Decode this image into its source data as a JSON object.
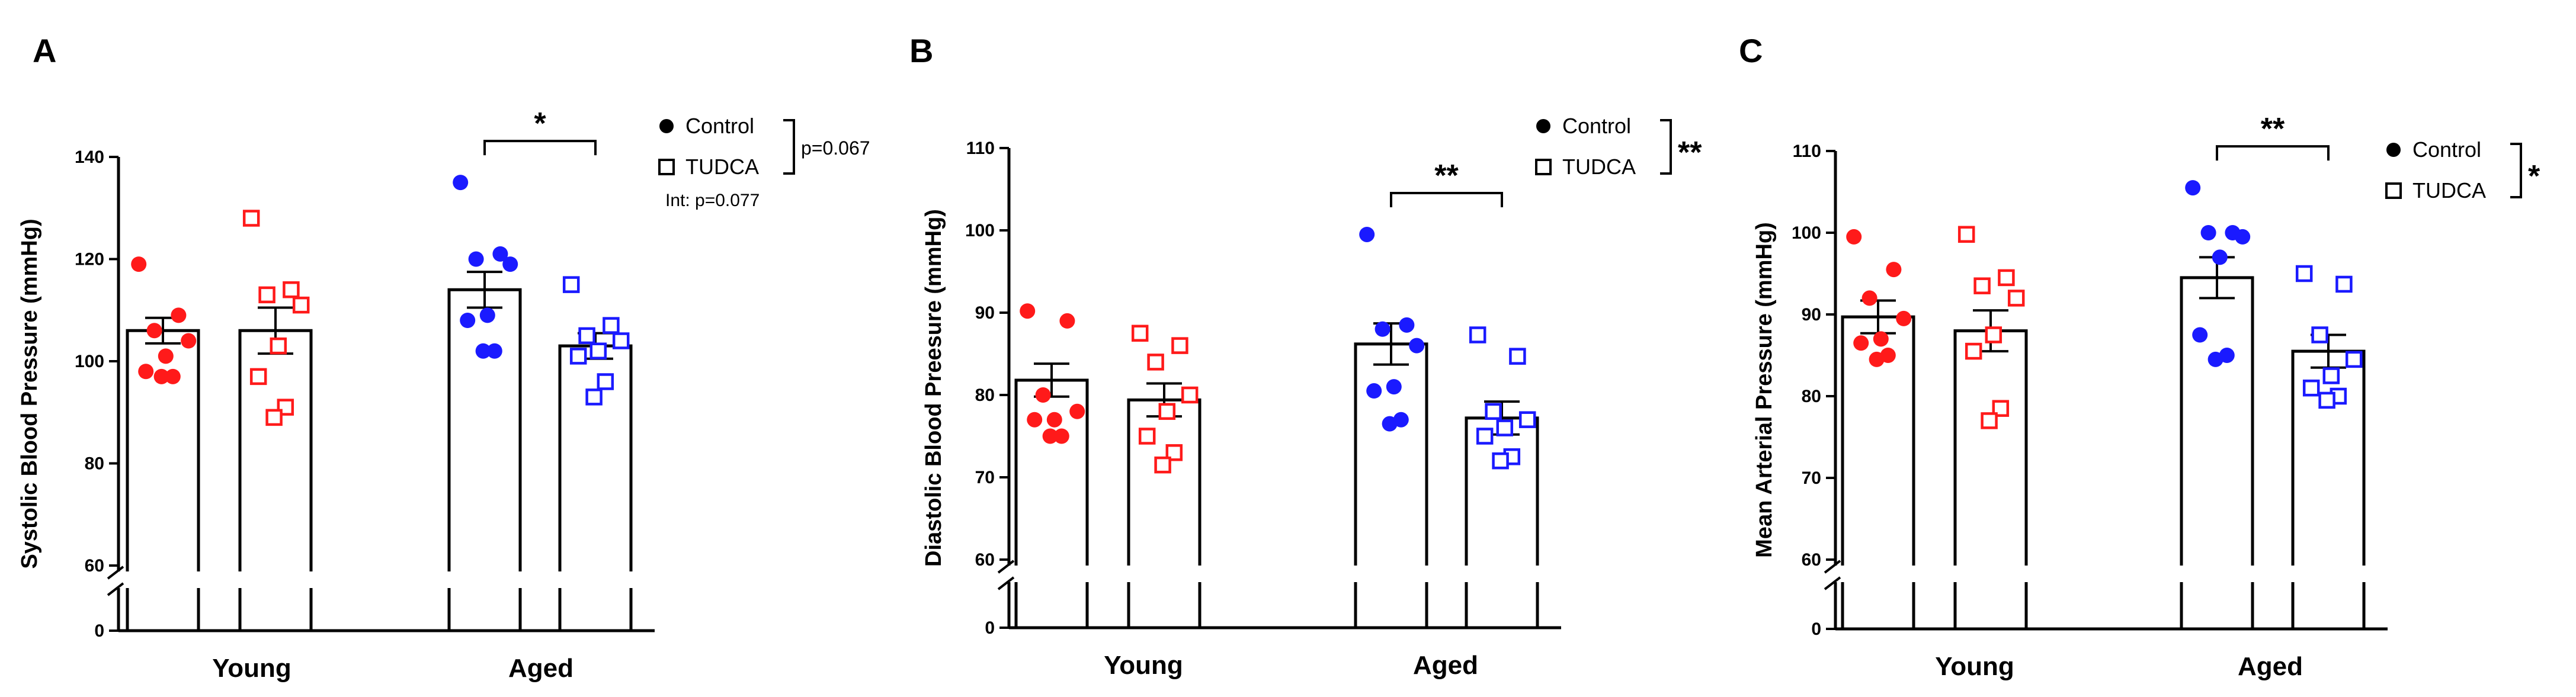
{
  "colors": {
    "young": "#ff1a1a",
    "aged": "#1a1aff",
    "axis": "#000000"
  },
  "chart_data": [
    {
      "panel": "A",
      "type": "bar",
      "ylabel": "Systolic Blood Pressure (mmHg)",
      "ylim": [
        0,
        140
      ],
      "axis_break": [
        0,
        60
      ],
      "yticks": [
        "0",
        "60",
        "80",
        "100",
        "120",
        "140"
      ],
      "categories": [
        "Young",
        "Aged"
      ],
      "legend": {
        "control": "Control",
        "tudca": "TUDCA",
        "placement": "top-right"
      },
      "legend_stat": "p=0.067",
      "interaction": "Int: p=0.077",
      "significance": [
        {
          "group": "Aged",
          "label": "*"
        }
      ],
      "series": [
        {
          "category": "Young",
          "group": "Control",
          "mean": 106,
          "sem": 2.5,
          "points": [
            119,
            109,
            106,
            104,
            101,
            98,
            97,
            97
          ]
        },
        {
          "category": "Young",
          "group": "TUDCA",
          "mean": 106,
          "sem": 4.5,
          "points": [
            128,
            114,
            113,
            111,
            103,
            97,
            91,
            89
          ]
        },
        {
          "category": "Aged",
          "group": "Control",
          "mean": 114,
          "sem": 3.5,
          "points": [
            135,
            121,
            120,
            119,
            109,
            108,
            102,
            102
          ]
        },
        {
          "category": "Aged",
          "group": "TUDCA",
          "mean": 103,
          "sem": 2.5,
          "points": [
            115,
            107,
            105,
            104,
            102,
            101,
            96,
            93
          ]
        }
      ]
    },
    {
      "panel": "B",
      "type": "bar",
      "ylabel": "Diastolic Blood Preesure (mmHg)",
      "ylim": [
        0,
        110
      ],
      "axis_break": [
        0,
        60
      ],
      "yticks": [
        "0",
        "60",
        "70",
        "80",
        "90",
        "100",
        "110"
      ],
      "categories": [
        "Young",
        "Aged"
      ],
      "legend": {
        "control": "Control",
        "tudca": "TUDCA",
        "placement": "top-right"
      },
      "legend_stat": "**",
      "interaction": "",
      "significance": [
        {
          "group": "Aged",
          "label": "**"
        }
      ],
      "series": [
        {
          "category": "Young",
          "group": "Control",
          "mean": 81.8,
          "sem": 2,
          "points": [
            90.2,
            89,
            80,
            78,
            77,
            77,
            75,
            75
          ]
        },
        {
          "category": "Young",
          "group": "TUDCA",
          "mean": 79.4,
          "sem": 2,
          "points": [
            87.5,
            86,
            84,
            80,
            78,
            75,
            73,
            71.5
          ]
        },
        {
          "category": "Aged",
          "group": "Control",
          "mean": 86.2,
          "sem": 2.5,
          "points": [
            99.5,
            88.5,
            88,
            86,
            81,
            80.5,
            77,
            76.5
          ]
        },
        {
          "category": "Aged",
          "group": "TUDCA",
          "mean": 77.2,
          "sem": 2,
          "points": [
            87.3,
            84.7,
            78,
            77,
            76,
            75,
            72.5,
            72
          ]
        }
      ]
    },
    {
      "panel": "C",
      "type": "bar",
      "ylabel": "Mean Arterial Pressure (mmHg)",
      "ylim": [
        0,
        110
      ],
      "axis_break": [
        0,
        60
      ],
      "yticks": [
        "0",
        "60",
        "70",
        "80",
        "90",
        "100",
        "110"
      ],
      "categories": [
        "Young",
        "Aged"
      ],
      "legend": {
        "control": "Control",
        "tudca": "TUDCA",
        "placement": "top-right"
      },
      "legend_stat": "*",
      "interaction": "",
      "significance": [
        {
          "group": "Aged",
          "label": "**"
        }
      ],
      "series": [
        {
          "category": "Young",
          "group": "Control",
          "mean": 89.7,
          "sem": 2,
          "points": [
            99.5,
            95.5,
            92,
            89.5,
            87,
            86.5,
            85,
            84.5
          ]
        },
        {
          "category": "Young",
          "group": "TUDCA",
          "mean": 88,
          "sem": 2.5,
          "points": [
            99.8,
            94.5,
            93.5,
            92,
            87.5,
            85.5,
            78.5,
            77
          ]
        },
        {
          "category": "Aged",
          "group": "Control",
          "mean": 94.5,
          "sem": 2.5,
          "points": [
            105.5,
            100,
            100,
            99.5,
            97,
            87.5,
            85,
            84.5
          ]
        },
        {
          "category": "Aged",
          "group": "TUDCA",
          "mean": 85.5,
          "sem": 2,
          "points": [
            95,
            93.7,
            87.5,
            84.5,
            82.5,
            81,
            80,
            79.5
          ]
        }
      ]
    }
  ]
}
